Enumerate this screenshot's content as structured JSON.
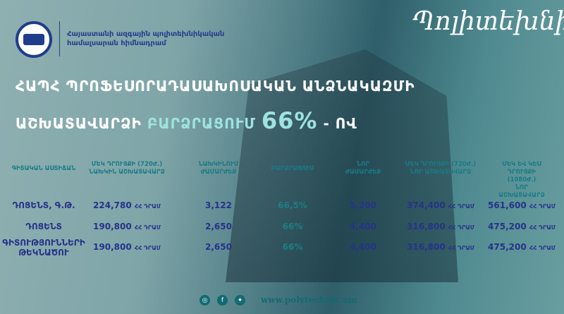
{
  "header": {
    "org_line1": "Հայաստանի ազգային պոլիտեխնիկական",
    "org_line2": "համալսարան հիմնադրամ",
    "script_title": "Պոլիտեխնիկ"
  },
  "title": {
    "line1": "ՀԱՊՀ ՊՐՈՖԵՍՈՐԱԴԱՍԱԽՈՍԱԿԱՆ ԱՆՁՆԱԿԱԶՄԻ",
    "line2_a": "ԱՇԽԱՏԱՎԱՐՁԻ",
    "line2_b": "ԲԱՐՁՐԱՑՈՒՄ",
    "percent": "66%",
    "suffix": "- ՈՎ"
  },
  "table": {
    "columns": [
      "ԳԻՏԱԿԱՆ ԱՍՏԻՃԱՆ",
      "ՄԵԿ ԴՐՈՒՅՔԻ (720Ժ.)\nՆԱԽԿԻՆ ԱՇԽԱՏԱՎԱՐՁ",
      "ՆԱԽԿԻՆՈՒՄ\nԺԱՄԱՐԺԵՔ",
      "ԲԱՐՁՐԱՑՈՒՄ",
      "ՆՈՐ\nԺԱՄԱՐԺԵՔ",
      "ՄԵԿ ԴՐՈՒՅՔԻ (720Ժ.)\nՆՈՐ ԱՇԽԱՏԱՎԱՐՁ",
      "ՄԵԿ ԵՎ ԿԵՍ ԴՐՈՒՅՔԻ (1080Ժ.)\nՆՈՐ ԱՇԽԱՏԱՎԱՐՁ"
    ],
    "currency": "ՀՀ ԴՐԱՄ",
    "rows": [
      [
        "ԴՈՑԵՆՏ, Գ.Թ.",
        "224,780",
        "3,122",
        "66,5%",
        "5,200",
        "374,400",
        "561,600"
      ],
      [
        "ԴՈՑԵՆՏ",
        "190,800",
        "2,650",
        "66%",
        "4,400",
        "316,800",
        "475,200"
      ],
      [
        "ԳԻՏՈՒԹՅՈՒՆՆԵՐԻ\nԹԵԿՆԱԾՈՒ",
        "190,800",
        "2,650",
        "66%",
        "4,400",
        "316,800",
        "475,200"
      ]
    ]
  },
  "footer": {
    "icons": [
      "instagram-icon",
      "facebook-icon",
      "twitter-icon"
    ],
    "url": "www.polytechnic.am"
  },
  "colors": {
    "header_text": "#1a7b86",
    "value_text": "#26328a",
    "accent": "#9ee3df"
  }
}
